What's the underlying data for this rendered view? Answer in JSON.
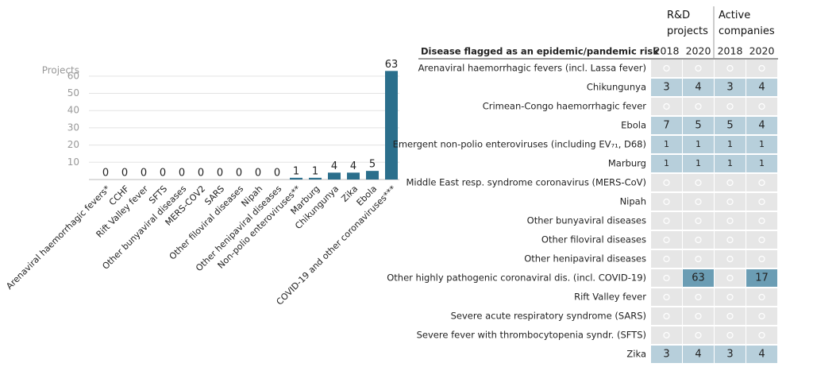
{
  "chart_data": {
    "type": "bar",
    "y_label": "Projects",
    "categories": [
      "Arenaviral haemorrhagic fevers*",
      "CCHF",
      "Rift Valley fever",
      "SFTS",
      "Other bunyaviral diseases",
      "MERS-COV2",
      "SARS",
      "Other filoviral diseases",
      "Nipah",
      "Other henipaviral diseases",
      "Non-polio enteroviruses**",
      "Marburg",
      "Chikungunya",
      "Zika",
      "Ebola",
      "COVID-19 and other coronaviruses***"
    ],
    "values": [
      0,
      0,
      0,
      0,
      0,
      0,
      0,
      0,
      0,
      0,
      1,
      1,
      4,
      4,
      5,
      63
    ],
    "color": "#2b6f8c",
    "ylim": [
      0,
      65
    ],
    "yticks": [
      10,
      20,
      30,
      40,
      50,
      60
    ],
    "grid": true
  },
  "table": {
    "groups": [
      "R&D projects",
      "Active companies"
    ],
    "header": "Disease flagged as an epidemic/pandemic risk",
    "years": [
      "2018",
      "2020",
      "2018",
      "2020"
    ],
    "rows": [
      {
        "label": "Arenaviral haemorrhagic fevers (incl. Lassa fever)",
        "values": [
          null,
          null,
          null,
          null
        ]
      },
      {
        "label": "Chikungunya",
        "values": [
          3,
          4,
          3,
          4
        ]
      },
      {
        "label": "Crimean-Congo haemorrhagic fever",
        "values": [
          null,
          null,
          null,
          null
        ]
      },
      {
        "label": "Ebola",
        "values": [
          7,
          5,
          5,
          4
        ]
      },
      {
        "label": "Emergent non-polio enteroviruses (including EV₇₁, D68)",
        "values": [
          1,
          1,
          1,
          1
        ]
      },
      {
        "label": "Marburg",
        "values": [
          1,
          1,
          1,
          1
        ]
      },
      {
        "label": "Middle East resp. syndrome coronavirus (MERS-CoV)",
        "values": [
          null,
          null,
          null,
          null
        ]
      },
      {
        "label": "Nipah",
        "values": [
          null,
          null,
          null,
          null
        ]
      },
      {
        "label": "Other bunyaviral diseases",
        "values": [
          null,
          null,
          null,
          null
        ]
      },
      {
        "label": "Other filoviral diseases",
        "values": [
          null,
          null,
          null,
          null
        ]
      },
      {
        "label": "Other henipaviral diseases",
        "values": [
          null,
          null,
          null,
          null
        ]
      },
      {
        "label": "Other highly pathogenic coronaviral dis. (incl. COVID-19)",
        "values": [
          null,
          63,
          null,
          17
        ]
      },
      {
        "label": "Rift Valley fever",
        "values": [
          null,
          null,
          null,
          null
        ]
      },
      {
        "label": "Severe acute respiratory syndrome (SARS)",
        "values": [
          null,
          null,
          null,
          null
        ]
      },
      {
        "label": "Severe fever with thrombocytopenia syndr. (SFTS)",
        "values": [
          null,
          null,
          null,
          null
        ]
      },
      {
        "label": "Zika",
        "values": [
          3,
          4,
          3,
          4
        ]
      }
    ]
  }
}
